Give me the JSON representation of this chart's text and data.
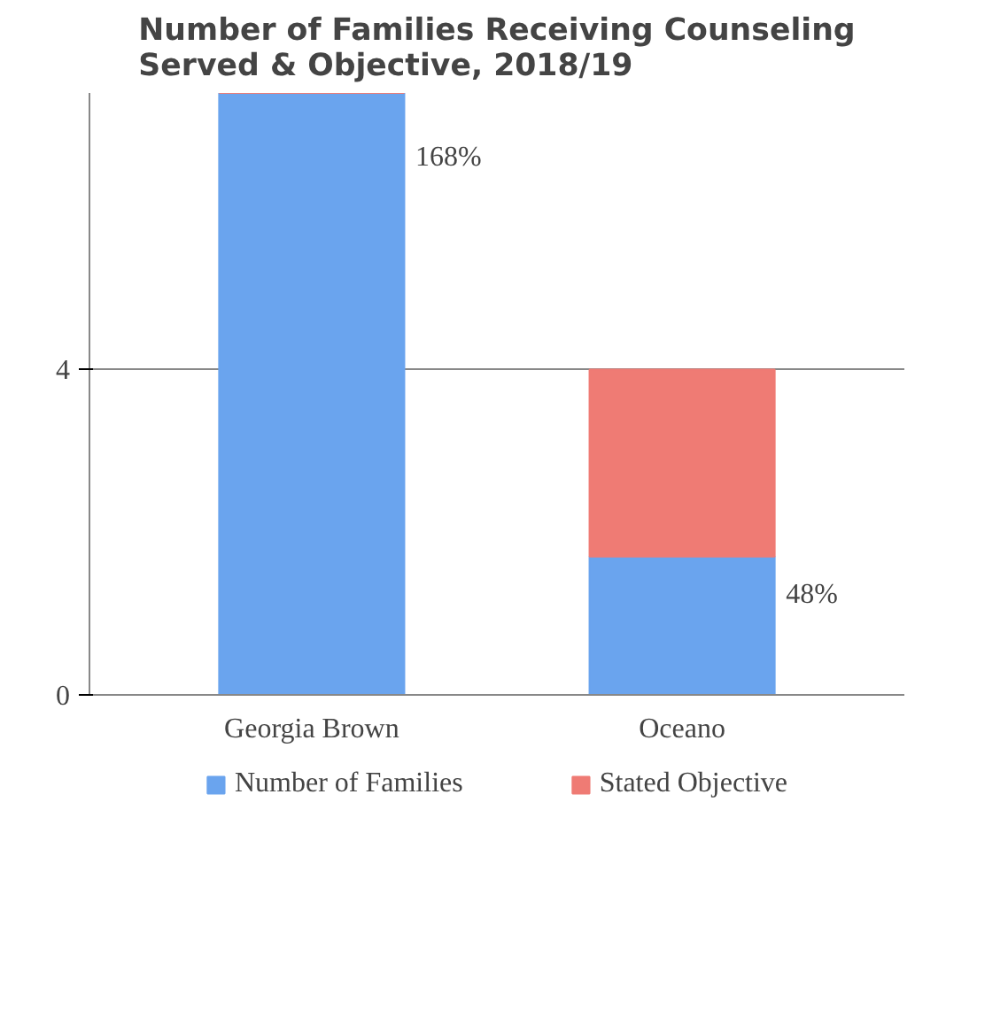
{
  "chart_data": {
    "type": "bar",
    "title": "Number of Families Receiving Counseling\nServed & Objective, 2018/19",
    "categories": [
      "Georgia Brown",
      "Oceano"
    ],
    "stacked": true,
    "series": [
      {
        "name": "Number of Families",
        "color": "#6aa4ee",
        "values": [
          7.4,
          1.7
        ]
      },
      {
        "name": "Stated Objective",
        "color": "#ef7b74",
        "values": [
          0,
          2.3
        ]
      }
    ],
    "ylim": [
      0,
      7.4
    ],
    "yticks": [
      0,
      4
    ],
    "grid": "y",
    "legend": "bottom",
    "annotations": [
      "168%",
      "48%"
    ]
  }
}
